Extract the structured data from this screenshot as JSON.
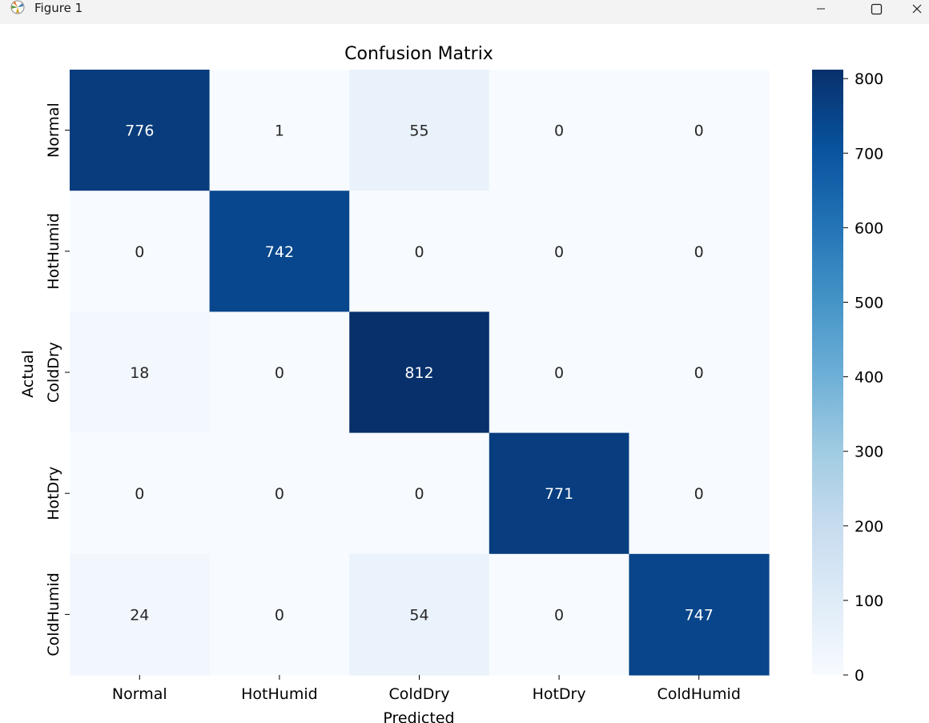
{
  "window": {
    "title": "Figure 1",
    "icons": {
      "app": "matplotlib-icon",
      "minimize": "minimize-icon",
      "maximize": "maximize-icon",
      "close": "close-icon"
    }
  },
  "chart_data": {
    "type": "heatmap",
    "title": "Confusion Matrix",
    "xlabel": "Predicted",
    "ylabel": "Actual",
    "x_categories": [
      "Normal",
      "HotHumid",
      "ColdDry",
      "HotDry",
      "ColdHumid"
    ],
    "y_categories": [
      "Normal",
      "HotHumid",
      "ColdDry",
      "HotDry",
      "ColdHumid"
    ],
    "values": [
      [
        776,
        1,
        55,
        0,
        0
      ],
      [
        0,
        742,
        0,
        0,
        0
      ],
      [
        18,
        0,
        812,
        0,
        0
      ],
      [
        0,
        0,
        0,
        771,
        0
      ],
      [
        24,
        0,
        54,
        0,
        747
      ]
    ],
    "colormap": "Blues",
    "colorbar": {
      "min": 0,
      "max": 812,
      "ticks": [
        0,
        100,
        200,
        300,
        400,
        500,
        600,
        700,
        800
      ]
    },
    "annotations": true,
    "grid": false
  }
}
